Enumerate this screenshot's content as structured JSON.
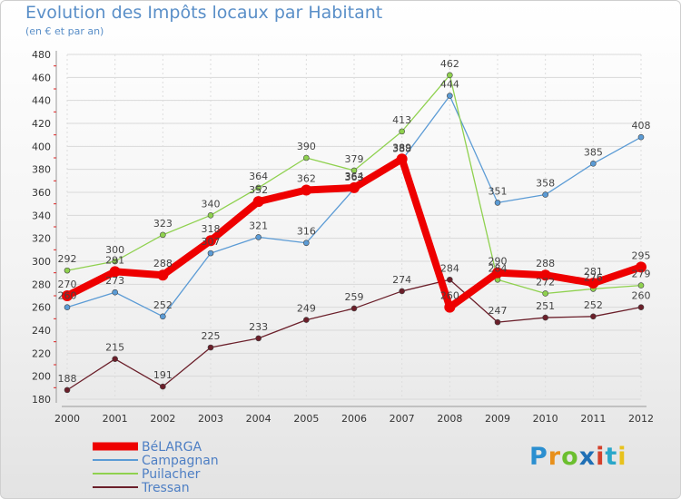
{
  "header": {
    "title": "Evolution des Impôts locaux par Habitant",
    "subtitle": "(en € et par an)"
  },
  "logo": {
    "letters": [
      "P",
      "r",
      "o",
      "x",
      "i",
      "t",
      "i"
    ],
    "colors": [
      "#2b8fd0",
      "#e8901c",
      "#6cbf2f",
      "#1f6fb5",
      "#d4402a",
      "#2aa7c9",
      "#e8c21c"
    ]
  },
  "chart_data": {
    "type": "line",
    "title": "Evolution des Impôts locaux par Habitant",
    "subtitle": "(en € et par an)",
    "xlabel": "",
    "ylabel": "",
    "grid": true,
    "legend_position": "bottom-left",
    "ylim": [
      180,
      480
    ],
    "yticks": [
      180,
      200,
      220,
      240,
      260,
      280,
      300,
      320,
      340,
      360,
      380,
      400,
      420,
      440,
      460,
      480
    ],
    "categories": [
      "2000",
      "2001",
      "2002",
      "2003",
      "2004",
      "2005",
      "2006",
      "2007",
      "2008",
      "2009",
      "2010",
      "2011",
      "2012"
    ],
    "series": [
      {
        "name": "Campagnan",
        "color": "#5b9bd5",
        "values": [
          260,
          273,
          252,
          307,
          321,
          316,
          363,
          388,
          444,
          351,
          358,
          385,
          408
        ]
      },
      {
        "name": "Puilacher",
        "color": "#8fd14f",
        "values": [
          292,
          300,
          323,
          340,
          364,
          390,
          379,
          413,
          462,
          284,
          272,
          276,
          279
        ]
      },
      {
        "name": "Tressan",
        "color": "#6b1f2a",
        "values": [
          188,
          215,
          191,
          225,
          233,
          249,
          259,
          274,
          284,
          247,
          251,
          252,
          260
        ]
      },
      {
        "name": "BéLARGA",
        "color": "#ee0000",
        "values": [
          270,
          291,
          288,
          318,
          352,
          362,
          364,
          389,
          260,
          290,
          288,
          281,
          295
        ]
      }
    ],
    "legend_order": [
      "BéLARGA",
      "Campagnan",
      "Puilacher",
      "Tressan"
    ]
  }
}
